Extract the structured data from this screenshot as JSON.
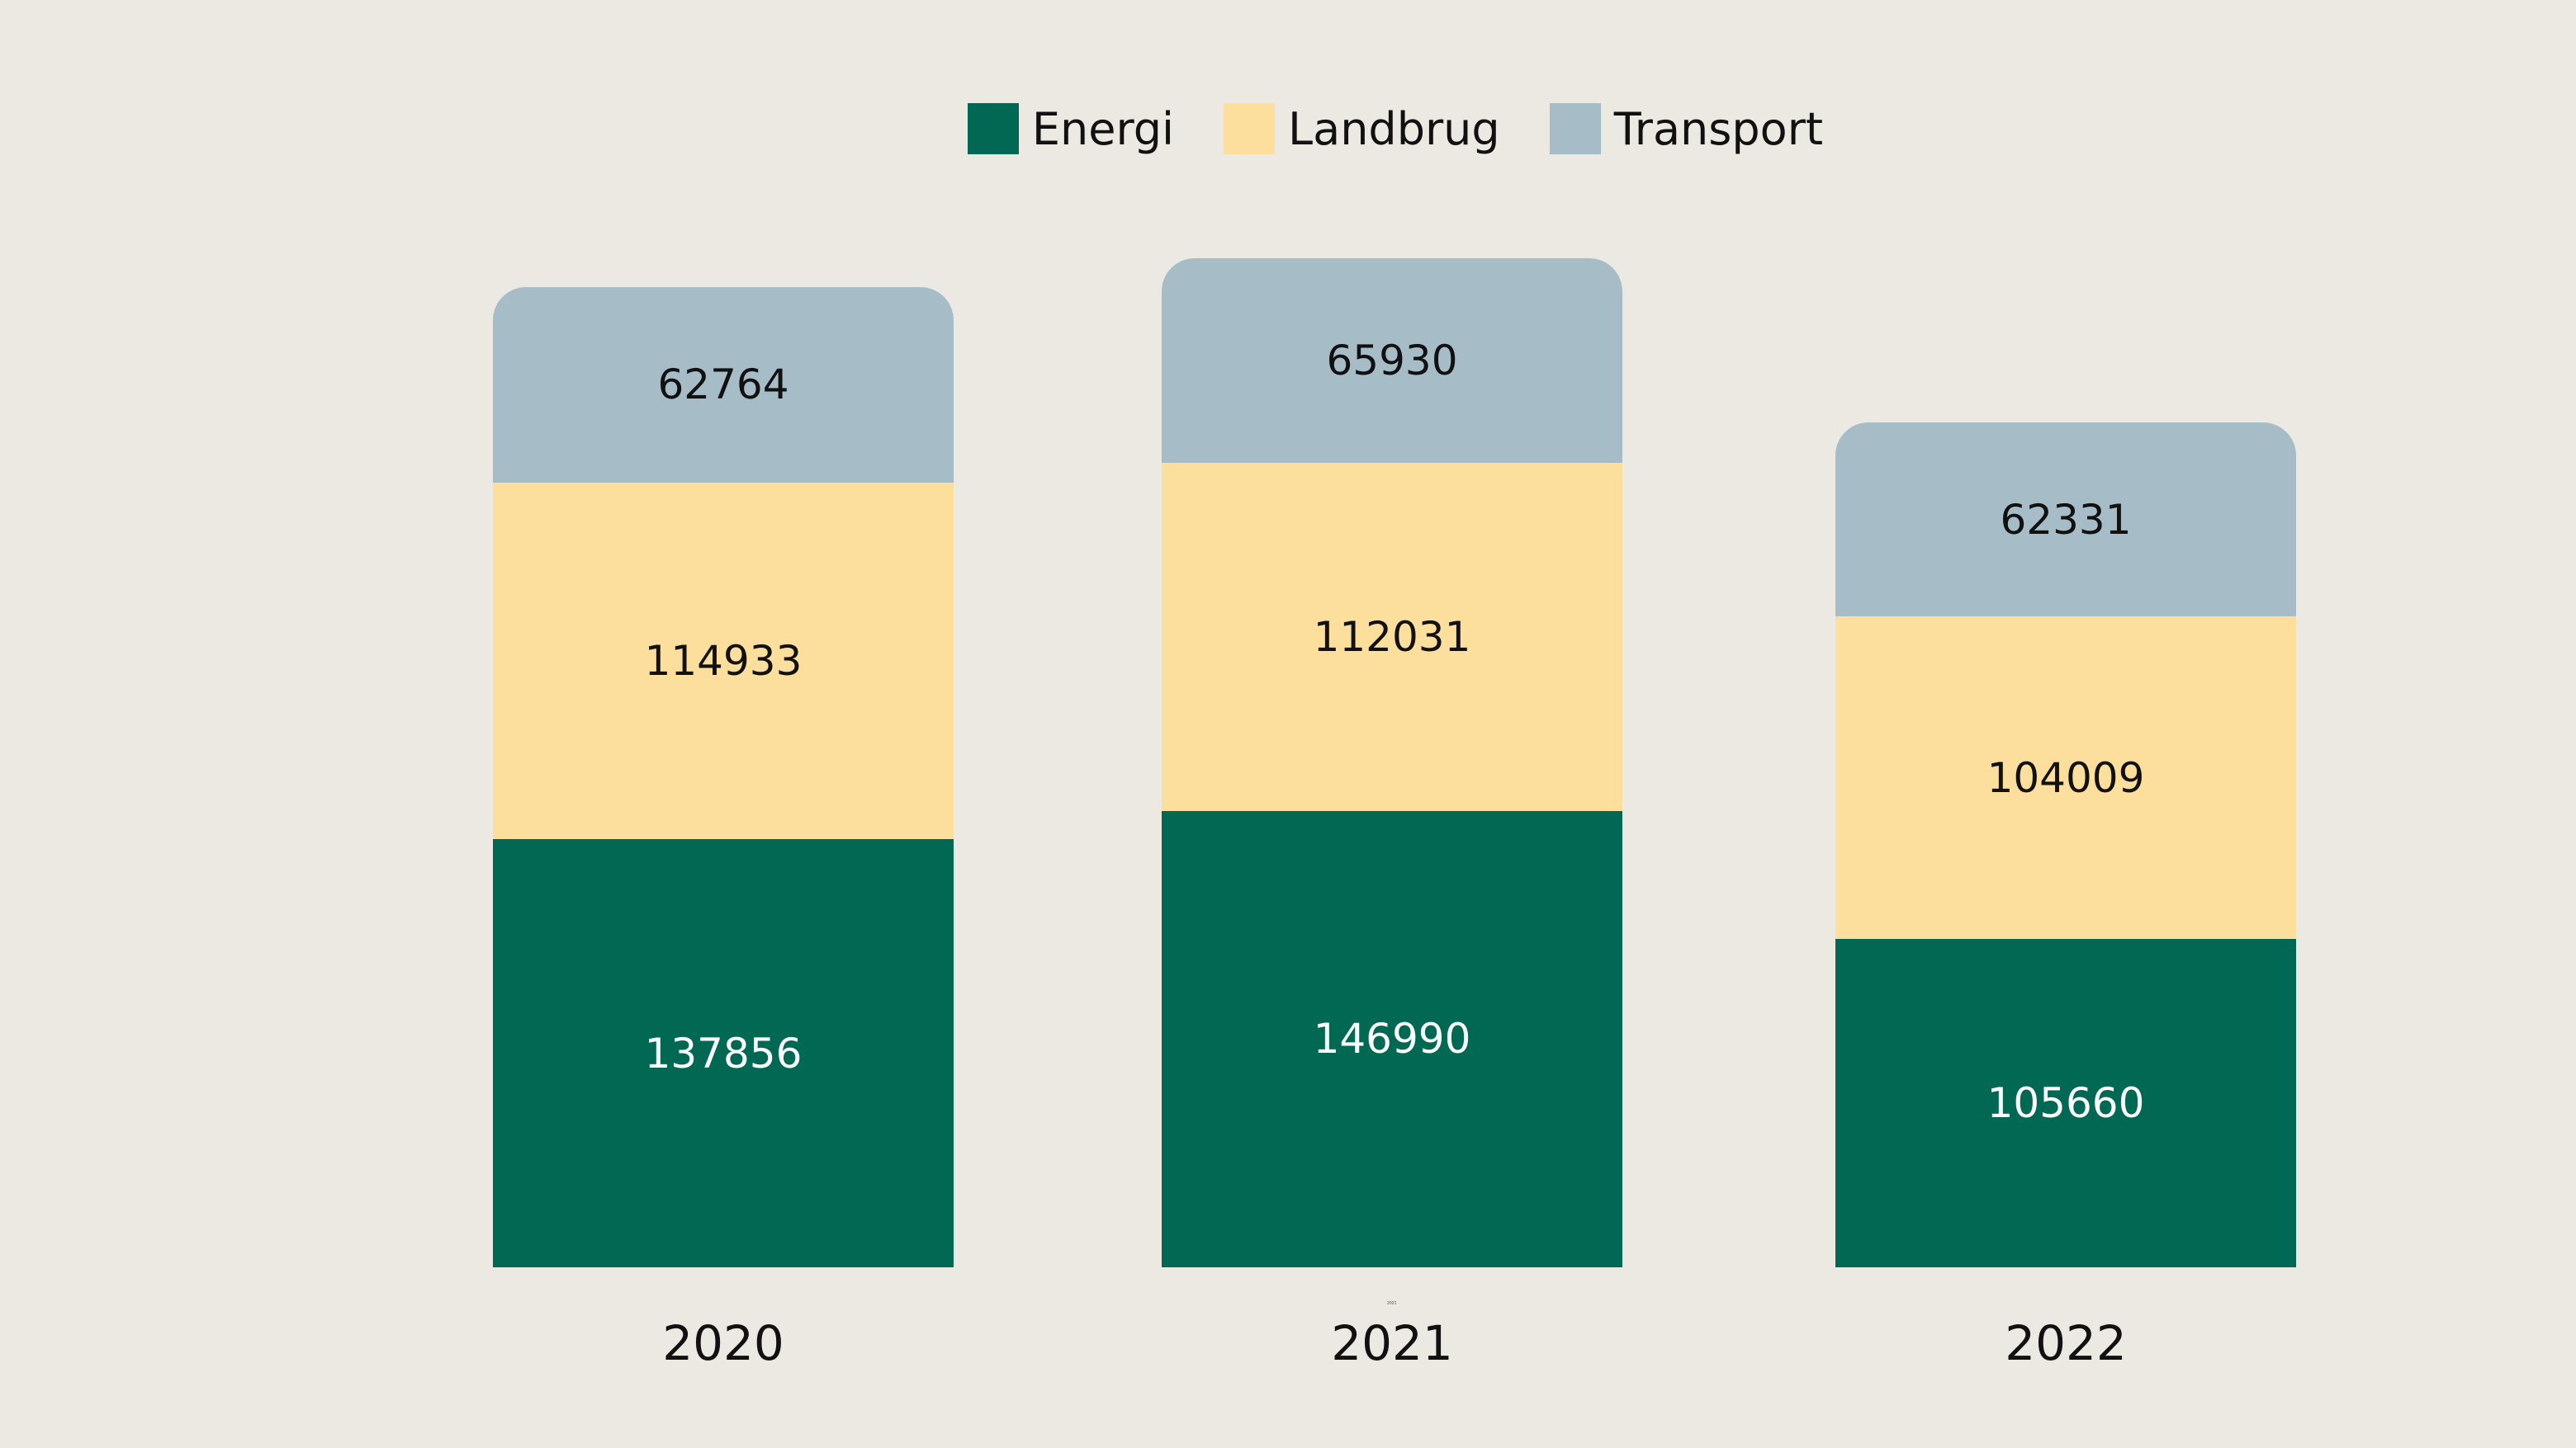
{
  "background_color": "#ECE9E3",
  "legend": {
    "items": [
      {
        "label": "Energi",
        "color": "#016853"
      },
      {
        "label": "Landbrug",
        "color": "#FDDF9D"
      },
      {
        "label": "Transport",
        "color": "#A6BDC8"
      }
    ]
  },
  "chart_data": {
    "type": "bar",
    "stacked": true,
    "orientation": "vertical",
    "title": "",
    "xlabel": "",
    "ylabel": "",
    "grid": false,
    "axes_visible": false,
    "legend_position": "top-center",
    "categories": [
      "2020",
      "2021",
      "2022"
    ],
    "series": [
      {
        "name": "Energi",
        "color": "#016853",
        "label_color": "#FFFFFF",
        "values": [
          137856,
          146990,
          105660
        ]
      },
      {
        "name": "Landbrug",
        "color": "#FDDF9D",
        "label_color": "#111111",
        "values": [
          114933,
          112031,
          104009
        ]
      },
      {
        "name": "Transport",
        "color": "#A6BDC8",
        "label_color": "#111111",
        "values": [
          62764,
          65930,
          62331
        ]
      }
    ],
    "totals": [
      315553,
      324951,
      272000
    ],
    "value_labels_shown": true
  },
  "stray_tick_label": "2021"
}
